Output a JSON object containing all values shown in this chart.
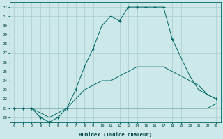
{
  "bg_color": "#cce8e8",
  "grid_color": "#aacccc",
  "line_color": "#006666",
  "xlabel": "Humidex (Indice chaleur)",
  "xlim_min": -0.5,
  "xlim_max": 23.5,
  "ylim_min": 19.5,
  "ylim_max": 32.5,
  "yticks": [
    20,
    21,
    22,
    23,
    24,
    25,
    26,
    27,
    28,
    29,
    30,
    31,
    32
  ],
  "xticks": [
    0,
    1,
    2,
    3,
    4,
    5,
    6,
    7,
    8,
    9,
    10,
    11,
    12,
    13,
    14,
    15,
    16,
    17,
    18,
    19,
    20,
    21,
    22,
    23
  ],
  "line1_x": [
    0,
    1,
    2,
    3,
    4,
    5,
    6,
    7,
    8,
    9,
    10,
    11,
    12,
    13,
    14,
    15,
    16,
    17,
    18,
    19,
    20,
    21,
    22,
    23
  ],
  "line1_y": [
    21.0,
    21.0,
    21.0,
    21.0,
    21.0,
    21.0,
    21.0,
    21.0,
    21.0,
    21.0,
    21.0,
    21.0,
    21.0,
    21.0,
    21.0,
    21.0,
    21.0,
    21.0,
    21.0,
    21.0,
    21.0,
    21.0,
    21.0,
    21.5
  ],
  "line2_x": [
    0,
    1,
    2,
    3,
    4,
    5,
    6,
    7,
    8,
    9,
    10,
    11,
    12,
    13,
    14,
    15,
    16,
    17,
    18,
    19,
    20,
    21,
    22,
    23
  ],
  "line2_y": [
    21.0,
    21.0,
    21.0,
    20.5,
    20.0,
    20.5,
    21.0,
    22.0,
    23.0,
    23.5,
    24.0,
    24.0,
    24.5,
    25.0,
    25.5,
    25.5,
    25.5,
    25.5,
    25.0,
    24.5,
    24.0,
    23.5,
    22.5,
    22.0
  ],
  "line3_x": [
    0,
    1,
    2,
    3,
    4,
    5,
    6,
    7,
    8,
    9,
    10,
    11,
    12,
    13,
    14,
    15,
    16,
    17,
    18
  ],
  "line3_y": [
    21.0,
    21.0,
    21.0,
    20.0,
    19.5,
    20.0,
    21.0,
    23.0,
    25.5,
    27.5,
    30.0,
    31.0,
    30.5,
    32.0,
    32.0,
    32.0,
    32.0,
    32.0,
    28.5
  ],
  "line4_x": [
    18,
    19,
    20,
    21,
    22,
    23
  ],
  "line4_y": [
    28.5,
    null,
    24.5,
    23.0,
    22.5,
    22.0
  ]
}
